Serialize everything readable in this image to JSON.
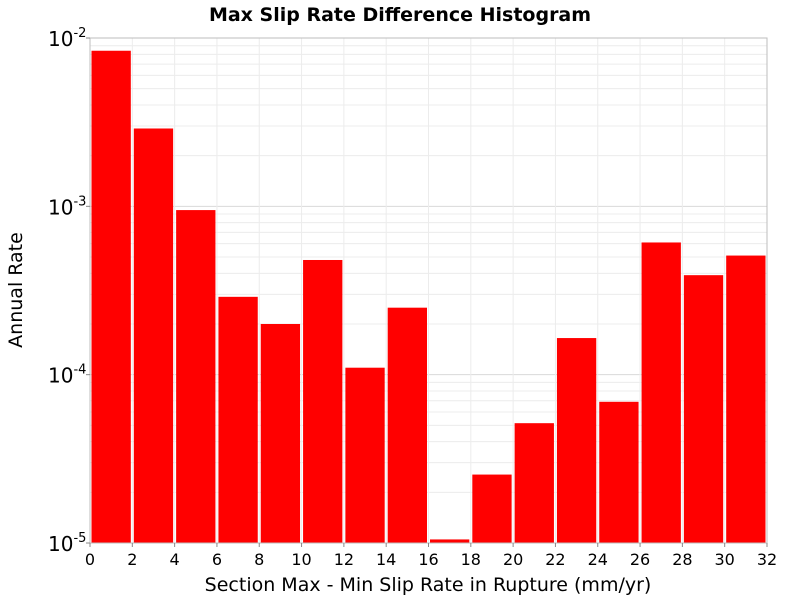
{
  "chart_data": {
    "type": "bar",
    "title": "Max Slip Rate Difference Histogram",
    "xlabel": "Section Max - Min Slip Rate in Rupture (mm/yr)",
    "ylabel": "Annual Rate",
    "y_scale": "log",
    "ylim": [
      1e-05,
      0.01
    ],
    "xlim": [
      0,
      32
    ],
    "bin_width": 2,
    "x_ticks": [
      "0",
      "2",
      "4",
      "6",
      "8",
      "10",
      "12",
      "14",
      "16",
      "18",
      "20",
      "22",
      "24",
      "26",
      "28",
      "30",
      "32"
    ],
    "y_ticks": [
      {
        "base": "10",
        "exp": "-5"
      },
      {
        "base": "10",
        "exp": "-4"
      },
      {
        "base": "10",
        "exp": "-3"
      },
      {
        "base": "10",
        "exp": "-2"
      }
    ],
    "bins": [
      {
        "x0": 0,
        "x1": 2,
        "value": 0.0084
      },
      {
        "x0": 2,
        "x1": 4,
        "value": 0.0029
      },
      {
        "x0": 4,
        "x1": 6,
        "value": 0.00095
      },
      {
        "x0": 6,
        "x1": 8,
        "value": 0.00029
      },
      {
        "x0": 8,
        "x1": 10,
        "value": 0.0002
      },
      {
        "x0": 10,
        "x1": 12,
        "value": 0.00048
      },
      {
        "x0": 12,
        "x1": 14,
        "value": 0.00011
      },
      {
        "x0": 14,
        "x1": 16,
        "value": 0.00025
      },
      {
        "x0": 16,
        "x1": 18,
        "value": 1.05e-05
      },
      {
        "x0": 18,
        "x1": 20,
        "value": 2.55e-05
      },
      {
        "x0": 20,
        "x1": 22,
        "value": 5.15e-05
      },
      {
        "x0": 22,
        "x1": 24,
        "value": 0.000165
      },
      {
        "x0": 24,
        "x1": 26,
        "value": 6.9e-05
      },
      {
        "x0": 26,
        "x1": 28,
        "value": 0.00061
      },
      {
        "x0": 28,
        "x1": 30,
        "value": 0.00039
      },
      {
        "x0": 30,
        "x1": 32,
        "value": 0.00051
      }
    ],
    "bar_color": "#ff0000",
    "grid": true,
    "legend": "none"
  }
}
